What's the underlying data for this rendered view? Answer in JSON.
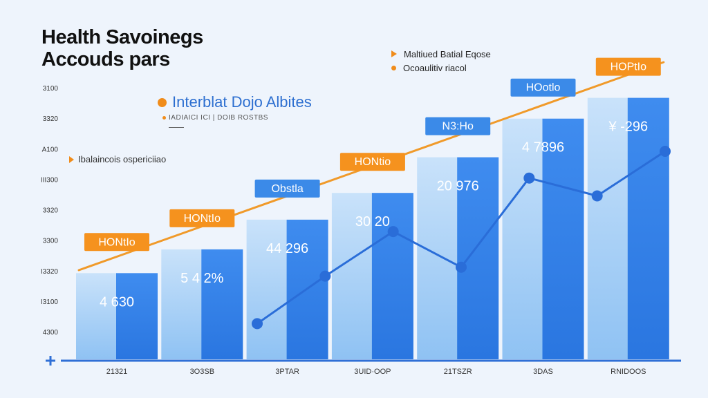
{
  "title_lines": [
    "Health Savoinegs",
    "Accouds pars"
  ],
  "legend_top": {
    "item1": "Maltiued Batial Eqose",
    "item2": "Ocoaulitiv riacol"
  },
  "subtitle": "Interblat Dojo Albites",
  "subnote": "IADIAICI ICI | DOIB ROSTBS",
  "legend_mid": "Ibalaincois ospericiiao",
  "colors": {
    "bar_light": "#a8d0f5",
    "bar_dark": "#2f7fe8",
    "trend_line": "#f09a2a",
    "orange_label_bg": "#f5921e",
    "blue_label_bg": "#3b8ae8",
    "line_series": "#2a6dd8",
    "background": "#eef4fc"
  },
  "chart_data": {
    "type": "bar",
    "title": "Health Savoinegs Accouds pars",
    "categories": [
      "21321",
      "3O3SB",
      "3PTAR",
      "3UID·OOP",
      "21TSZR",
      "3DAS",
      "RNIDOOS"
    ],
    "y_tick_labels": [
      "3100",
      "3320",
      "A100",
      "III300",
      "3320",
      "3300",
      "I3320",
      "I3100",
      "4300"
    ],
    "bar_value_labels": [
      "4 630",
      "5 4 2%",
      "44 296",
      "30 20",
      "20 976",
      "4 7896",
      "¥ -296"
    ],
    "callout_labels": [
      "HONtIo",
      "HONtIo",
      "Obstla",
      "HONtio",
      "N3:Ho",
      "HOotlo",
      "HOPtIo"
    ],
    "callout_styles": [
      "orange",
      "orange",
      "blue",
      "orange",
      "blue",
      "blue",
      "orange"
    ],
    "ylim": [
      0,
      1
    ],
    "series": [
      {
        "values": [
          0.29,
          0.37,
          0.47,
          0.56,
          0.68,
          0.81,
          0.88
        ]
      },
      {
        "values": [
          0.12,
          0.28,
          0.43,
          0.31,
          0.61,
          0.55,
          0.7
        ]
      }
    ],
    "trend": {
      "start": 0.3,
      "end": 1.0
    },
    "legend_placement": "top-right",
    "grid": false
  }
}
